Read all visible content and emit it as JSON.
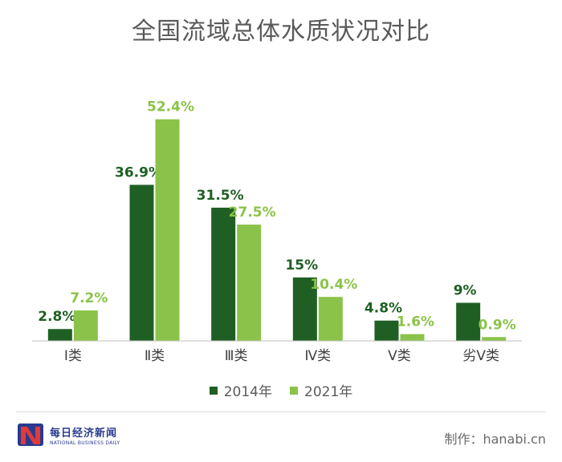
{
  "title": "全国流域总体水质状况对比",
  "chart_data": {
    "type": "bar",
    "categories": [
      "Ⅰ类",
      "Ⅱ类",
      "Ⅲ类",
      "Ⅳ类",
      "Ⅴ类",
      "劣Ⅴ类"
    ],
    "series": [
      {
        "name": "2014年",
        "values": [
          2.8,
          36.9,
          31.5,
          15,
          4.8,
          9
        ],
        "labels": [
          "2.8%",
          "36.9%",
          "31.5%",
          "15%",
          "4.8%",
          "9%"
        ]
      },
      {
        "name": "2021年",
        "values": [
          7.2,
          52.4,
          27.5,
          10.4,
          1.6,
          0.9
        ],
        "labels": [
          "7.2%",
          "52.4%",
          "27.5%",
          "10.4%",
          "1.6%",
          "0.9%"
        ]
      }
    ],
    "ylim": [
      0,
      55
    ],
    "colors": [
      "#1f5f24",
      "#8bc34a"
    ],
    "grid": false,
    "legend": "bottom"
  },
  "brand": {
    "logo_cn": "每日经济新闻",
    "logo_en": "NATIONAL BUSINESS DAILY"
  },
  "credit": "制作：hanabi.cn"
}
